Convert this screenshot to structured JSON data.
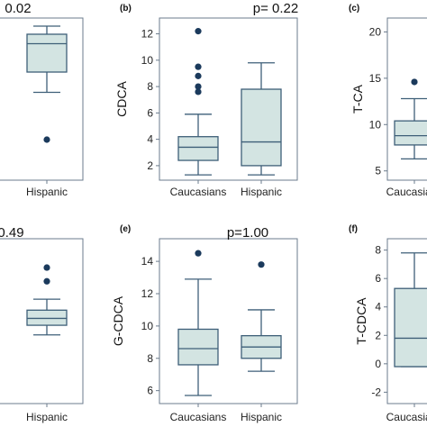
{
  "figure": {
    "box_fill": "#d3e4e2",
    "box_stroke": "#3e5f78",
    "outlier_color": "#1b3a5c",
    "axis_color": "#6b7b8c"
  },
  "chart_data": [
    {
      "panel": "",
      "type": "box",
      "pvalue": "0.02",
      "ylabel": "",
      "ylim": [
        0,
        12
      ],
      "yticks": [],
      "categories": [
        "Hispanic"
      ],
      "boxes": [
        {
          "category": "Hispanic",
          "min": 6.5,
          "q1": 8.0,
          "median": 10.1,
          "q3": 10.8,
          "max": 11.4,
          "outliers": [
            3.0
          ]
        }
      ]
    },
    {
      "panel": "(b)",
      "type": "box",
      "pvalue": "p= 0.22",
      "ylabel": "CDCA",
      "ylim": [
        0.9,
        13.2
      ],
      "yticks": [
        2,
        4,
        6,
        8,
        10,
        12
      ],
      "categories": [
        "Caucasians",
        "Hispanic"
      ],
      "boxes": [
        {
          "category": "Caucasians",
          "min": 1.3,
          "q1": 2.4,
          "median": 3.4,
          "q3": 4.2,
          "max": 5.9,
          "outliers": [
            7.6,
            8.0,
            8.8,
            9.5,
            12.2
          ]
        },
        {
          "category": "Hispanic",
          "min": 1.3,
          "q1": 2.0,
          "median": 3.8,
          "q3": 7.8,
          "max": 9.8,
          "outliers": []
        }
      ]
    },
    {
      "panel": "(c)",
      "type": "box",
      "pvalue": "",
      "ylabel": "T-CA",
      "ylim": [
        4.0,
        21.5
      ],
      "yticks": [
        5,
        10,
        15,
        20
      ],
      "categories": [
        "Caucasians"
      ],
      "boxes": [
        {
          "category": "Caucasians",
          "min": 6.3,
          "q1": 7.8,
          "median": 8.8,
          "q3": 10.4,
          "max": 12.8,
          "outliers": [
            14.6
          ]
        }
      ]
    },
    {
      "panel": "",
      "type": "box",
      "pvalue": "0.49",
      "ylabel": "",
      "ylim": [
        0,
        12
      ],
      "yticks": [],
      "categories": [
        "Hispanic"
      ],
      "boxes": [
        {
          "category": "Hispanic",
          "min": 5.0,
          "q1": 5.7,
          "median": 6.2,
          "q3": 6.8,
          "max": 7.6,
          "outliers": [
            8.9,
            9.9
          ]
        }
      ]
    },
    {
      "panel": "(e)",
      "type": "box",
      "pvalue": "p=1.00",
      "ylabel": "G-CDCA",
      "ylim": [
        5.2,
        15.4
      ],
      "yticks": [
        6,
        8,
        10,
        12,
        14
      ],
      "categories": [
        "Caucasians",
        "Hispanic"
      ],
      "boxes": [
        {
          "category": "Caucasians",
          "min": 5.7,
          "q1": 7.6,
          "median": 8.6,
          "q3": 9.8,
          "max": 12.9,
          "outliers": [
            14.5
          ]
        },
        {
          "category": "Hispanic",
          "min": 7.2,
          "q1": 8.0,
          "median": 8.7,
          "q3": 9.4,
          "max": 11.0,
          "outliers": [
            13.8
          ]
        }
      ]
    },
    {
      "panel": "(f)",
      "type": "box",
      "pvalue": "",
      "ylabel": "T-CDCA",
      "ylim": [
        -2.8,
        8.8
      ],
      "yticks": [
        -2,
        0,
        2,
        4,
        6,
        8
      ],
      "categories": [
        "Caucasians"
      ],
      "boxes": [
        {
          "category": "Caucasians",
          "min": -0.2,
          "q1": -0.2,
          "median": 1.8,
          "q3": 5.3,
          "max": 7.8,
          "outliers": []
        }
      ]
    }
  ]
}
